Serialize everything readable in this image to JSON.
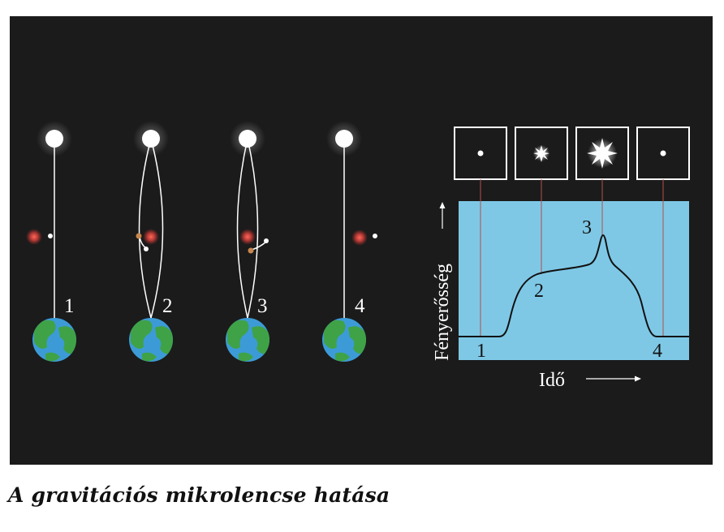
{
  "panels": [
    {
      "number": "1",
      "state": "unaligned"
    },
    {
      "number": "2",
      "state": "approaching"
    },
    {
      "number": "3",
      "state": "aligned"
    },
    {
      "number": "4",
      "state": "unaligned"
    }
  ],
  "chart": {
    "ylabel": "Fényerősség",
    "xlabel": "Idő",
    "points": [
      {
        "label": "1",
        "brightness": "low"
      },
      {
        "label": "2",
        "brightness": "medium"
      },
      {
        "label": "3",
        "brightness": "peak"
      },
      {
        "label": "4",
        "brightness": "low"
      }
    ]
  },
  "caption": "A gravitációs mikrolencse hatása",
  "colors": {
    "background": "#1b1b1b",
    "plot_area": "#7ec8e6",
    "earth_ocean": "#3c9bd6",
    "earth_land": "#3fa247",
    "lens_star": "#e84a4a",
    "marker_line": "#b0504a"
  }
}
